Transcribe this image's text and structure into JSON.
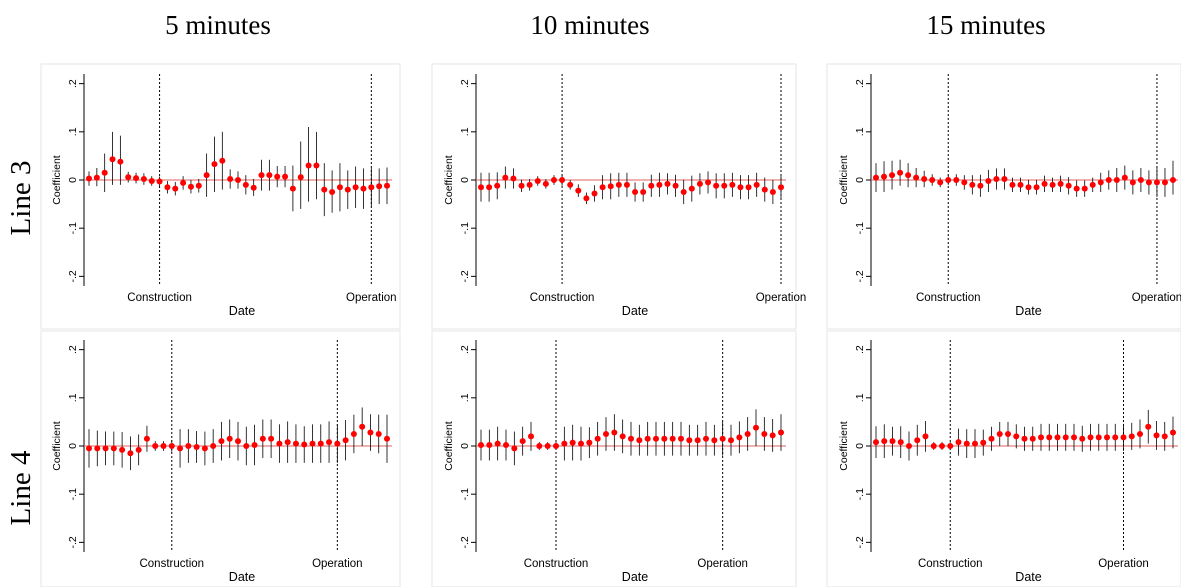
{
  "figure": {
    "column_titles": [
      "5 minutes",
      "10 minutes",
      "15 minutes"
    ],
    "row_labels": [
      "Line 3",
      "Line 4"
    ]
  },
  "style": {
    "point_color": "#ff0000",
    "zero_line_color": "#e06060",
    "ci_color": "#000000"
  },
  "chart_data": [
    {
      "type": "scatter",
      "title": "",
      "row": "Line 3",
      "column": "5 minutes",
      "xlabel": "Date",
      "ylabel": "Coefficient",
      "ylim": [
        -0.22,
        0.22
      ],
      "yticks": [
        -0.2,
        -0.1,
        0,
        0.1,
        0.2
      ],
      "ytick_labels": [
        "-.2",
        "-.1",
        "0",
        ".1",
        ".2"
      ],
      "reference_lines": [
        {
          "label": "Construction",
          "index": 9
        },
        {
          "label": "Operation",
          "index": 36
        }
      ],
      "series": [
        {
          "name": "",
          "estimate": [
            0.003,
            0.005,
            0.015,
            0.043,
            0.038,
            0.006,
            0.004,
            0.002,
            -0.002,
            -0.003,
            -0.015,
            -0.018,
            -0.006,
            -0.014,
            -0.012,
            0.01,
            0.033,
            0.04,
            0.002,
            0.0,
            -0.01,
            -0.016,
            0.01,
            0.01,
            0.007,
            0.007,
            -0.018,
            0.006,
            0.03,
            0.03,
            -0.02,
            -0.025,
            -0.015,
            -0.02,
            -0.015,
            -0.018,
            -0.015,
            -0.013,
            -0.012
          ],
          "ci_low": [
            -0.012,
            -0.013,
            -0.025,
            -0.01,
            -0.01,
            -0.005,
            -0.007,
            -0.01,
            -0.012,
            -0.013,
            -0.028,
            -0.032,
            -0.02,
            -0.028,
            -0.026,
            -0.035,
            -0.025,
            -0.02,
            -0.018,
            -0.018,
            -0.03,
            -0.033,
            -0.022,
            -0.022,
            -0.015,
            -0.015,
            -0.065,
            -0.06,
            -0.045,
            -0.04,
            -0.075,
            -0.068,
            -0.065,
            -0.06,
            -0.058,
            -0.06,
            -0.055,
            -0.05,
            -0.05
          ],
          "ci_high": [
            0.018,
            0.025,
            0.055,
            0.1,
            0.092,
            0.017,
            0.015,
            0.014,
            0.008,
            0.007,
            -0.002,
            -0.004,
            0.008,
            0.0,
            0.002,
            0.055,
            0.09,
            0.1,
            0.022,
            0.018,
            0.01,
            0.002,
            0.042,
            0.042,
            0.029,
            0.029,
            0.03,
            0.08,
            0.11,
            0.1,
            0.035,
            0.02,
            0.035,
            0.02,
            0.028,
            0.024,
            0.025,
            0.024,
            0.026
          ]
        }
      ]
    },
    {
      "type": "scatter",
      "title": "",
      "row": "Line 3",
      "column": "10 minutes",
      "xlabel": "Date",
      "ylabel": "Coefficient",
      "ylim": [
        -0.22,
        0.22
      ],
      "yticks": [
        -0.2,
        -0.1,
        0,
        0.1,
        0.2
      ],
      "ytick_labels": [
        "-.2",
        "-.1",
        "0",
        ".1",
        ".2"
      ],
      "reference_lines": [
        {
          "label": "Construction",
          "index": 10
        },
        {
          "label": "Operation",
          "index": 37
        }
      ],
      "series": [
        {
          "name": "",
          "estimate": [
            -0.015,
            -0.015,
            -0.012,
            0.005,
            0.003,
            -0.012,
            -0.01,
            -0.002,
            -0.008,
            0.0,
            0.0,
            -0.01,
            -0.022,
            -0.038,
            -0.028,
            -0.015,
            -0.013,
            -0.01,
            -0.01,
            -0.025,
            -0.025,
            -0.012,
            -0.01,
            -0.008,
            -0.012,
            -0.025,
            -0.018,
            -0.008,
            -0.005,
            -0.012,
            -0.012,
            -0.01,
            -0.015,
            -0.015,
            -0.01,
            -0.02,
            -0.025,
            -0.015
          ],
          "ci_low": [
            -0.045,
            -0.045,
            -0.04,
            -0.018,
            -0.018,
            -0.025,
            -0.022,
            -0.012,
            -0.018,
            -0.01,
            -0.012,
            -0.02,
            -0.035,
            -0.05,
            -0.045,
            -0.04,
            -0.04,
            -0.035,
            -0.035,
            -0.045,
            -0.045,
            -0.035,
            -0.035,
            -0.03,
            -0.035,
            -0.05,
            -0.045,
            -0.03,
            -0.028,
            -0.038,
            -0.038,
            -0.035,
            -0.04,
            -0.04,
            -0.035,
            -0.045,
            -0.05,
            -0.04
          ],
          "ci_high": [
            0.015,
            0.015,
            0.016,
            0.028,
            0.024,
            0.001,
            0.002,
            0.008,
            0.002,
            0.01,
            0.012,
            0.0,
            -0.009,
            -0.026,
            -0.011,
            0.01,
            0.014,
            0.015,
            0.015,
            -0.005,
            -0.005,
            0.011,
            0.015,
            0.014,
            0.011,
            0.0,
            0.009,
            0.014,
            0.018,
            0.014,
            0.014,
            0.015,
            0.01,
            0.01,
            0.015,
            0.005,
            0.0,
            0.01
          ]
        }
      ]
    },
    {
      "type": "scatter",
      "title": "",
      "row": "Line 3",
      "column": "15 minutes",
      "xlabel": "Date",
      "ylabel": "Coefficient",
      "ylim": [
        -0.22,
        0.22
      ],
      "yticks": [
        -0.2,
        -0.1,
        0,
        0.1,
        0.2
      ],
      "ytick_labels": [
        "-.2",
        "-.1",
        "0",
        ".1",
        ".2"
      ],
      "reference_lines": [
        {
          "label": "Construction",
          "index": 9
        },
        {
          "label": "Operation",
          "index": 35
        }
      ],
      "series": [
        {
          "name": "",
          "estimate": [
            0.005,
            0.007,
            0.01,
            0.015,
            0.01,
            0.005,
            0.002,
            0.0,
            -0.005,
            0.0,
            0.0,
            -0.005,
            -0.01,
            -0.012,
            -0.002,
            0.002,
            0.002,
            -0.01,
            -0.01,
            -0.015,
            -0.015,
            -0.008,
            -0.01,
            -0.008,
            -0.012,
            -0.018,
            -0.018,
            -0.01,
            -0.005,
            0.0,
            0.0,
            0.005,
            -0.005,
            0.0,
            -0.005,
            -0.005,
            -0.005,
            0.0
          ],
          "ci_low": [
            -0.025,
            -0.025,
            -0.02,
            -0.012,
            -0.015,
            -0.015,
            -0.015,
            -0.012,
            -0.015,
            -0.01,
            -0.012,
            -0.02,
            -0.03,
            -0.035,
            -0.025,
            -0.02,
            -0.02,
            -0.025,
            -0.025,
            -0.03,
            -0.03,
            -0.025,
            -0.025,
            -0.025,
            -0.03,
            -0.035,
            -0.035,
            -0.025,
            -0.025,
            -0.02,
            -0.025,
            -0.02,
            -0.03,
            -0.025,
            -0.03,
            -0.035,
            -0.035,
            -0.03
          ],
          "ci_high": [
            0.035,
            0.039,
            0.04,
            0.042,
            0.035,
            0.025,
            0.019,
            0.012,
            0.005,
            0.01,
            0.012,
            0.01,
            0.01,
            0.011,
            0.021,
            0.024,
            0.024,
            0.005,
            0.005,
            0.0,
            0.0,
            0.009,
            0.005,
            0.009,
            0.006,
            -0.001,
            -0.001,
            0.005,
            0.015,
            0.02,
            0.025,
            0.03,
            0.02,
            0.025,
            0.02,
            0.025,
            0.025,
            0.04
          ]
        }
      ]
    },
    {
      "type": "scatter",
      "title": "",
      "row": "Line 4",
      "column": "5 minutes",
      "xlabel": "Date",
      "ylabel": "Coefficient",
      "ylim": [
        -0.22,
        0.22
      ],
      "yticks": [
        -0.2,
        -0.1,
        0,
        0.1,
        0.2
      ],
      "ytick_labels": [
        "-.2",
        "-.1",
        "0",
        ".1",
        ".2"
      ],
      "reference_lines": [
        {
          "label": "Construction",
          "index": 10
        },
        {
          "label": "Operation",
          "index": 30
        }
      ],
      "series": [
        {
          "name": "",
          "estimate": [
            -0.005,
            -0.005,
            -0.005,
            -0.005,
            -0.008,
            -0.015,
            -0.008,
            0.015,
            0.0,
            0.0,
            0.0,
            -0.005,
            0.0,
            -0.002,
            -0.005,
            0.0,
            0.01,
            0.015,
            0.01,
            0.0,
            0.002,
            0.015,
            0.015,
            0.005,
            0.008,
            0.005,
            0.003,
            0.005,
            0.005,
            0.008,
            0.005,
            0.012,
            0.025,
            0.04,
            0.028,
            0.025,
            0.015
          ],
          "ci_low": [
            -0.045,
            -0.042,
            -0.04,
            -0.04,
            -0.045,
            -0.05,
            -0.04,
            -0.012,
            -0.01,
            -0.01,
            -0.012,
            -0.045,
            -0.035,
            -0.035,
            -0.04,
            -0.035,
            -0.03,
            -0.025,
            -0.03,
            -0.04,
            -0.04,
            -0.025,
            -0.025,
            -0.035,
            -0.035,
            -0.035,
            -0.035,
            -0.035,
            -0.035,
            -0.035,
            -0.035,
            -0.03,
            -0.015,
            0.0,
            -0.01,
            -0.015,
            -0.035
          ],
          "ci_high": [
            0.035,
            0.032,
            0.03,
            0.03,
            0.029,
            0.02,
            0.024,
            0.042,
            0.01,
            0.01,
            0.012,
            0.035,
            0.035,
            0.031,
            0.03,
            0.035,
            0.05,
            0.055,
            0.05,
            0.04,
            0.044,
            0.055,
            0.055,
            0.045,
            0.051,
            0.045,
            0.041,
            0.045,
            0.045,
            0.051,
            0.045,
            0.054,
            0.065,
            0.08,
            0.066,
            0.065,
            0.065
          ]
        }
      ]
    },
    {
      "type": "scatter",
      "title": "",
      "row": "Line 4",
      "column": "10 minutes",
      "xlabel": "Date",
      "ylabel": "Coefficient",
      "ylim": [
        -0.22,
        0.22
      ],
      "yticks": [
        -0.2,
        -0.1,
        0,
        0.1,
        0.2
      ],
      "ytick_labels": [
        "-.2",
        "-.1",
        "0",
        ".1",
        ".2"
      ],
      "reference_lines": [
        {
          "label": "Construction",
          "index": 9
        },
        {
          "label": "Operation",
          "index": 29
        }
      ],
      "series": [
        {
          "name": "",
          "estimate": [
            0.002,
            0.002,
            0.005,
            0.002,
            -0.005,
            0.01,
            0.02,
            0.0,
            0.0,
            0.0,
            0.005,
            0.007,
            0.005,
            0.007,
            0.015,
            0.025,
            0.028,
            0.02,
            0.015,
            0.012,
            0.015,
            0.015,
            0.015,
            0.015,
            0.015,
            0.012,
            0.012,
            0.015,
            0.012,
            0.015,
            0.012,
            0.018,
            0.025,
            0.038,
            0.025,
            0.022,
            0.028
          ],
          "ci_low": [
            -0.03,
            -0.03,
            -0.03,
            -0.03,
            -0.04,
            -0.02,
            -0.01,
            -0.008,
            -0.008,
            -0.008,
            -0.03,
            -0.03,
            -0.03,
            -0.025,
            -0.02,
            -0.01,
            -0.01,
            -0.015,
            -0.02,
            -0.02,
            -0.02,
            -0.02,
            -0.02,
            -0.02,
            -0.02,
            -0.02,
            -0.02,
            -0.02,
            -0.02,
            -0.02,
            -0.02,
            -0.015,
            -0.01,
            0.0,
            -0.01,
            -0.012,
            -0.01
          ],
          "ci_high": [
            0.034,
            0.034,
            0.04,
            0.034,
            0.03,
            0.04,
            0.05,
            0.008,
            0.008,
            0.008,
            0.04,
            0.044,
            0.04,
            0.039,
            0.05,
            0.06,
            0.066,
            0.055,
            0.05,
            0.044,
            0.05,
            0.05,
            0.05,
            0.05,
            0.05,
            0.044,
            0.044,
            0.05,
            0.044,
            0.05,
            0.044,
            0.051,
            0.06,
            0.076,
            0.06,
            0.056,
            0.066
          ]
        }
      ]
    },
    {
      "type": "scatter",
      "title": "",
      "row": "Line 4",
      "column": "15 minutes",
      "xlabel": "Date",
      "ylabel": "Coefficient",
      "ylim": [
        -0.22,
        0.22
      ],
      "yticks": [
        -0.2,
        -0.1,
        0,
        0.1,
        0.2
      ],
      "ytick_labels": [
        "-.2",
        "-.1",
        "0",
        ".1",
        ".2"
      ],
      "reference_lines": [
        {
          "label": "Construction",
          "index": 9
        },
        {
          "label": "Operation",
          "index": 30
        }
      ],
      "series": [
        {
          "name": "",
          "estimate": [
            0.008,
            0.01,
            0.01,
            0.008,
            0.0,
            0.012,
            0.02,
            0.0,
            0.0,
            0.0,
            0.008,
            0.005,
            0.005,
            0.007,
            0.015,
            0.025,
            0.025,
            0.02,
            0.015,
            0.015,
            0.018,
            0.018,
            0.018,
            0.018,
            0.018,
            0.015,
            0.018,
            0.018,
            0.018,
            0.018,
            0.018,
            0.02,
            0.025,
            0.04,
            0.022,
            0.02,
            0.028
          ],
          "ci_low": [
            -0.025,
            -0.025,
            -0.02,
            -0.025,
            -0.03,
            -0.02,
            -0.012,
            -0.008,
            -0.008,
            -0.008,
            -0.02,
            -0.025,
            -0.025,
            -0.02,
            -0.01,
            0.0,
            0.0,
            -0.005,
            -0.01,
            -0.01,
            -0.01,
            -0.01,
            -0.01,
            -0.01,
            -0.01,
            -0.012,
            -0.01,
            -0.01,
            -0.01,
            -0.01,
            -0.01,
            -0.008,
            -0.005,
            0.005,
            -0.008,
            -0.01,
            -0.005
          ],
          "ci_high": [
            0.041,
            0.045,
            0.04,
            0.041,
            0.03,
            0.044,
            0.052,
            0.008,
            0.008,
            0.008,
            0.036,
            0.035,
            0.035,
            0.034,
            0.04,
            0.05,
            0.05,
            0.045,
            0.04,
            0.04,
            0.046,
            0.046,
            0.046,
            0.046,
            0.046,
            0.042,
            0.046,
            0.046,
            0.046,
            0.046,
            0.046,
            0.048,
            0.055,
            0.075,
            0.052,
            0.05,
            0.061
          ]
        }
      ]
    }
  ]
}
